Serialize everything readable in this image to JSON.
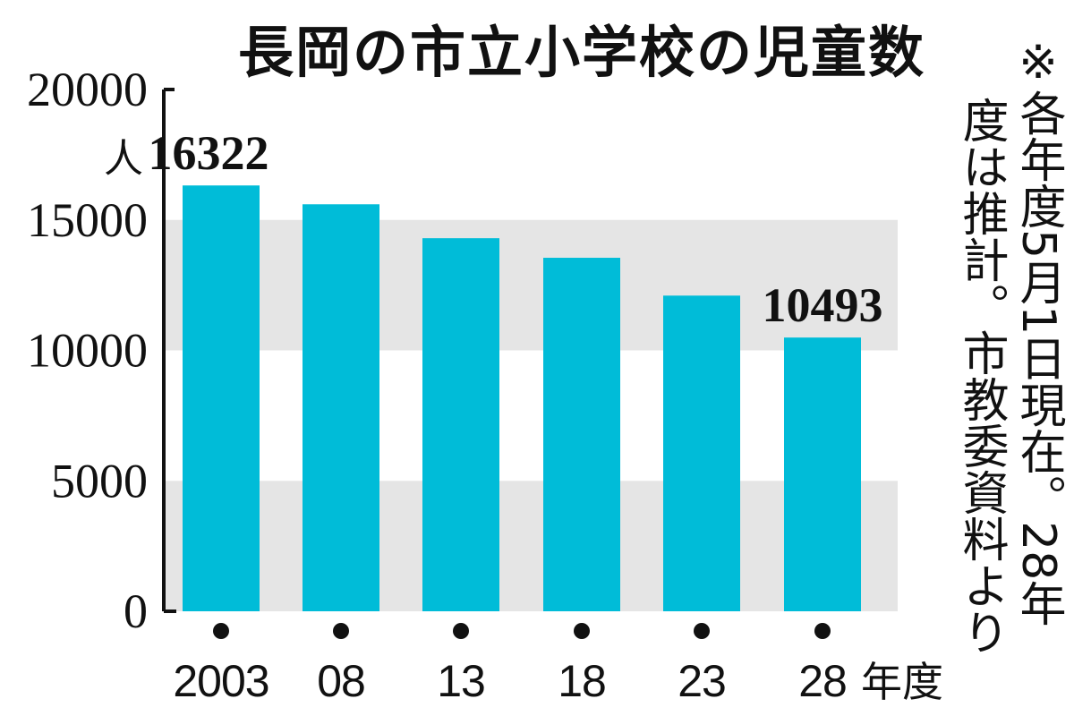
{
  "chart_data": {
    "type": "bar",
    "title": "長岡の市立小学校の児童数",
    "categories": [
      "2003",
      "08",
      "13",
      "18",
      "23",
      "28"
    ],
    "x_unit": "年度",
    "values": [
      16322,
      15600,
      14300,
      13550,
      12100,
      10493
    ],
    "data_labels": [
      {
        "index": 0,
        "text": "16322"
      },
      {
        "index": 5,
        "text": "10493"
      }
    ],
    "ylabel": "人",
    "ylim": [
      0,
      20000
    ],
    "yticks": [
      "0",
      "5000",
      "10000",
      "15000",
      "20000"
    ],
    "grid": "alternating bands",
    "legend": "none",
    "colors": {
      "bar": "#00bcd8",
      "band": "#e5e5e5",
      "axis": "#111111"
    }
  },
  "note": {
    "col1": "※各年度5月1日現在。28年",
    "col2": "度は推計。市教委資料より"
  }
}
